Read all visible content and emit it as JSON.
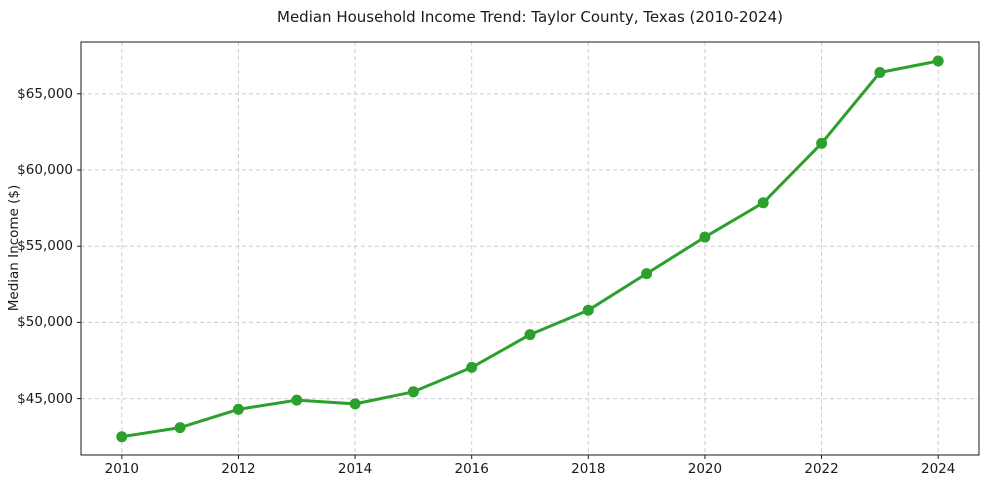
{
  "chart_data": {
    "type": "line",
    "title": "Median Household Income Trend: Taylor County, Texas (2010-2024)",
    "xlabel": "",
    "ylabel": "Median Income ($)",
    "x": [
      2010,
      2011,
      2012,
      2013,
      2014,
      2015,
      2016,
      2017,
      2018,
      2019,
      2020,
      2021,
      2022,
      2023,
      2024
    ],
    "series": [
      {
        "name": "Median Household Income",
        "values": [
          42500,
          43100,
          44300,
          44900,
          44650,
          45450,
          47050,
          49200,
          50800,
          53200,
          55600,
          57850,
          61750,
          66400,
          67150
        ]
      }
    ],
    "x_ticks": [
      2010,
      2012,
      2014,
      2016,
      2018,
      2020,
      2022,
      2024
    ],
    "x_tick_labels": [
      "2010",
      "2012",
      "2014",
      "2016",
      "2018",
      "2020",
      "2022",
      "2024"
    ],
    "y_ticks": [
      45000,
      50000,
      55000,
      60000,
      65000
    ],
    "y_tick_labels": [
      "$45,000",
      "$50,000",
      "$55,000",
      "$60,000",
      "$65,000"
    ],
    "xlim": [
      2009.3,
      2024.7
    ],
    "ylim": [
      41300,
      68400
    ],
    "grid": true,
    "legend": "none",
    "line_color": "#2ca02c",
    "marker": "o",
    "grid_color": "#cccccc",
    "axis_color": "#1a1a1a"
  }
}
